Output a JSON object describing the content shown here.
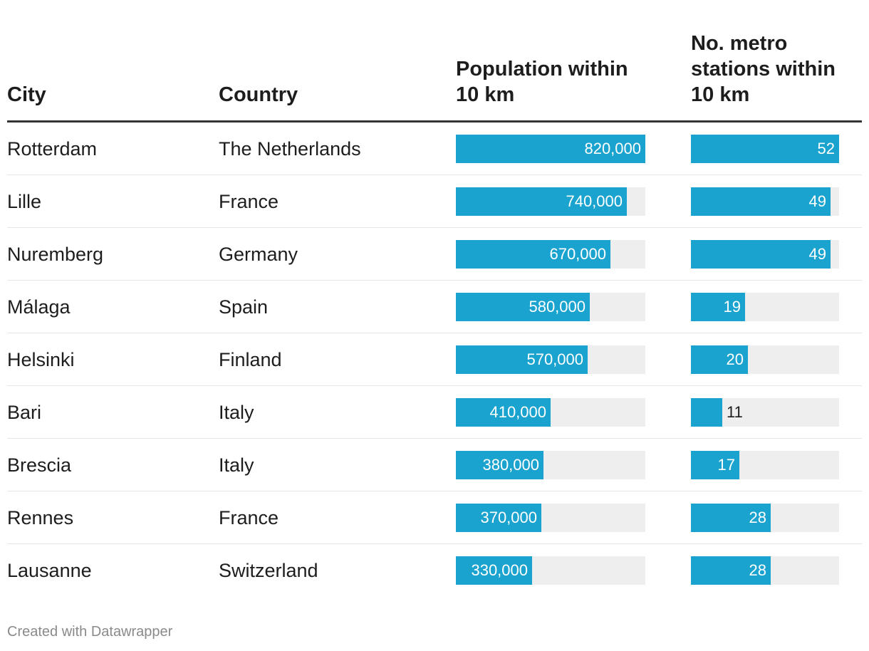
{
  "chart_data": {
    "type": "table",
    "columns": [
      "City",
      "Country",
      "Population within 10 km",
      "No. metro stations within 10 km"
    ],
    "headers": {
      "city": "City",
      "country": "Country",
      "population": "Population within 10 km",
      "metro": "No. metro stations within 10 km"
    },
    "population_max": 820000,
    "metro_max": 52,
    "rows": [
      {
        "city": "Rotterdam",
        "country": "The Netherlands",
        "population": 820000,
        "population_label": "820,000",
        "metro": 52,
        "metro_label": "52"
      },
      {
        "city": "Lille",
        "country": "France",
        "population": 740000,
        "population_label": "740,000",
        "metro": 49,
        "metro_label": "49"
      },
      {
        "city": "Nuremberg",
        "country": "Germany",
        "population": 670000,
        "population_label": "670,000",
        "metro": 49,
        "metro_label": "49"
      },
      {
        "city": "Málaga",
        "country": "Spain",
        "population": 580000,
        "population_label": "580,000",
        "metro": 19,
        "metro_label": "19"
      },
      {
        "city": "Helsinki",
        "country": "Finland",
        "population": 570000,
        "population_label": "570,000",
        "metro": 20,
        "metro_label": "20"
      },
      {
        "city": "Bari",
        "country": "Italy",
        "population": 410000,
        "population_label": "410,000",
        "metro": 11,
        "metro_label": "11"
      },
      {
        "city": "Brescia",
        "country": "Italy",
        "population": 380000,
        "population_label": "380,000",
        "metro": 17,
        "metro_label": "17"
      },
      {
        "city": "Rennes",
        "country": "France",
        "population": 370000,
        "population_label": "370,000",
        "metro": 28,
        "metro_label": "28"
      },
      {
        "city": "Lausanne",
        "country": "Switzerland",
        "population": 330000,
        "population_label": "330,000",
        "metro": 28,
        "metro_label": "28"
      }
    ]
  },
  "colors": {
    "bar": "#1ba3cf",
    "track": "#eeeeee"
  },
  "footer": {
    "credit": "Created with Datawrapper"
  }
}
